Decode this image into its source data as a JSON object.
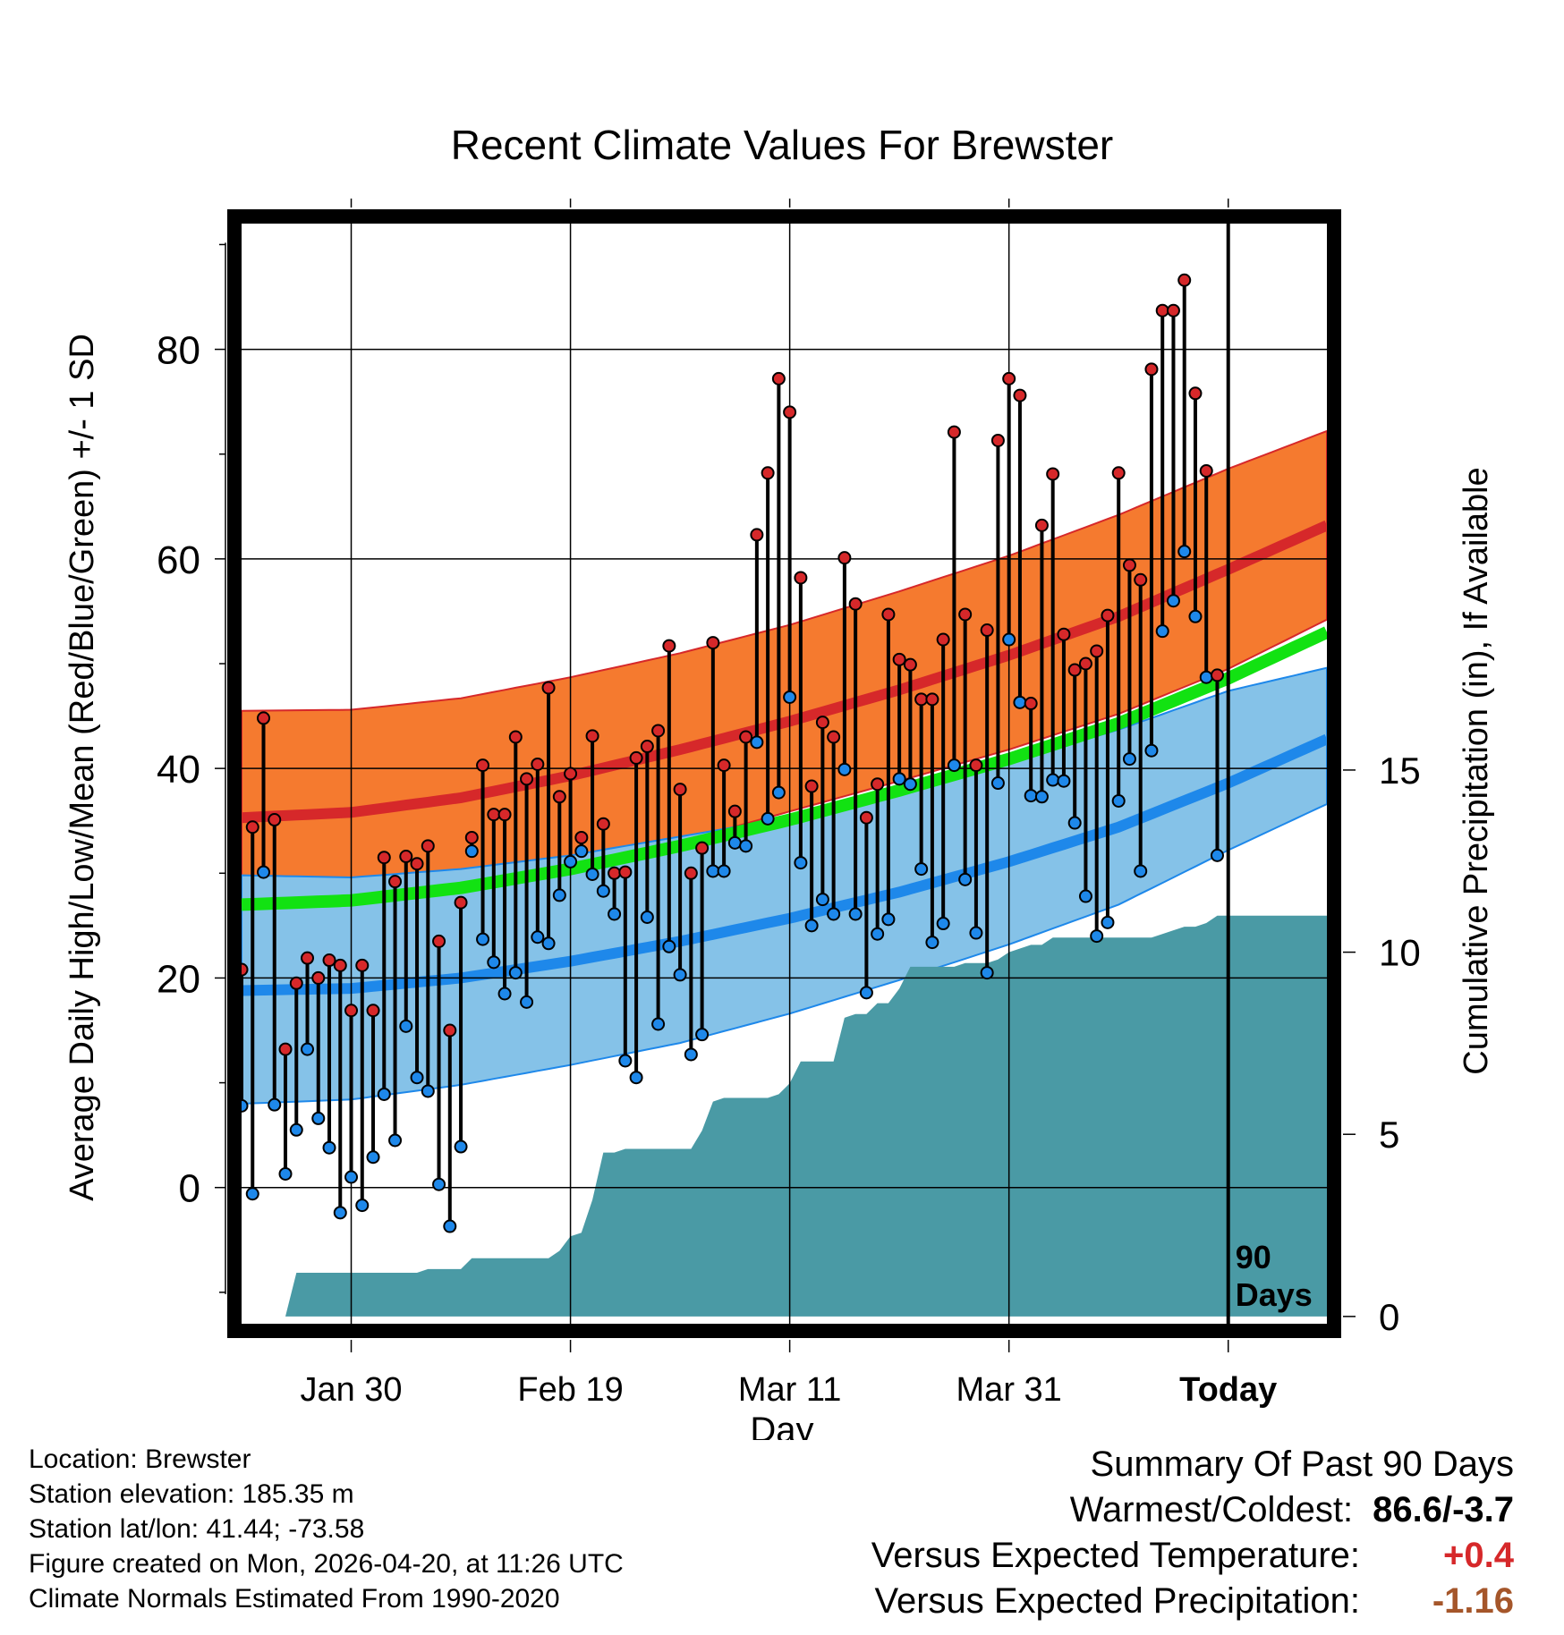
{
  "colors": {
    "high_band": "#f57a2f",
    "high_mean": "#d6282a",
    "low_band": "#85c2e8",
    "low_mean": "#1e88ea",
    "mean": "#12e212",
    "high_marker": "#d6282a",
    "low_marker": "#1e88ea",
    "precip_fill": "#4a9aa5",
    "positive_temp": "#d6282a",
    "negative_precip": "#a5562a"
  },
  "chart_data": {
    "type": "line",
    "title": "Recent Climate Values For Brewster",
    "xlabel": "Day",
    "ylabel": "Average Daily High/Low/Mean (Red/Blue/Green) +/- 1 SD",
    "y2label": "Cumulative Precipitation (in), If Available",
    "xlim": [
      -90,
      9
    ],
    "ylim": [
      -13,
      92
    ],
    "y2lim": [
      -0.2,
      30
    ],
    "y_ticks": [
      0,
      20,
      40,
      60,
      80
    ],
    "y2_ticks": [
      0,
      5,
      10,
      15
    ],
    "x_ticks": [
      {
        "day": -80,
        "label": "Jan 30"
      },
      {
        "day": -60,
        "label": "Feb 19"
      },
      {
        "day": -40,
        "label": "Mar 11"
      },
      {
        "day": -20,
        "label": "Mar 31"
      },
      {
        "day": 0,
        "label": "Today"
      }
    ],
    "today_marker": {
      "day": 0,
      "label_top": "90",
      "label_bottom": "Days"
    },
    "normals": {
      "day": [
        -90,
        -80,
        -70,
        -60,
        -50,
        -40,
        -30,
        -20,
        -10,
        0,
        9
      ],
      "high_mean": [
        35.3,
        35.8,
        37.2,
        39.3,
        41.8,
        44.5,
        47.5,
        50.8,
        54.5,
        59.0,
        63.2
      ],
      "high_sd_upper": [
        45.5,
        45.6,
        46.7,
        48.7,
        51.0,
        53.7,
        56.9,
        60.3,
        64.2,
        68.6,
        72.2
      ],
      "high_sd_lower": [
        26.3,
        26.8,
        28.2,
        30.5,
        33.0,
        35.9,
        38.8,
        41.8,
        45.2,
        49.5,
        54.2
      ],
      "mean": [
        27.0,
        27.4,
        28.6,
        30.4,
        32.6,
        35.1,
        37.9,
        40.9,
        44.3,
        48.6,
        53.0
      ],
      "low_mean": [
        18.8,
        19.0,
        20.0,
        21.6,
        23.5,
        25.7,
        28.2,
        31.1,
        34.4,
        38.6,
        42.8
      ],
      "low_sd_upper": [
        29.8,
        29.6,
        30.4,
        31.7,
        33.5,
        35.3,
        37.8,
        40.6,
        43.7,
        47.4,
        49.6
      ],
      "low_sd_lower": [
        8.0,
        8.4,
        9.8,
        11.7,
        13.8,
        16.6,
        19.8,
        23.2,
        27.0,
        32.2,
        36.6
      ]
    },
    "series": [
      {
        "name": "Daily High",
        "values": [
          20.8,
          34.4,
          44.8,
          35.1,
          13.2,
          19.5,
          21.9,
          20.0,
          21.7,
          21.2,
          16.9,
          21.2,
          16.9,
          31.5,
          29.2,
          31.6,
          30.9,
          32.6,
          23.5,
          15.0,
          27.2,
          33.4,
          40.3,
          35.6,
          35.6,
          43.0,
          39.0,
          40.4,
          47.7,
          37.3,
          39.5,
          33.4,
          43.1,
          34.7,
          30.0,
          30.1,
          41.0,
          42.1,
          43.6,
          51.7,
          38.0,
          30.0,
          32.4,
          52.0,
          40.3,
          35.9,
          43.0,
          62.3,
          68.2,
          77.2,
          74.0,
          58.2,
          38.3,
          44.4,
          43.0,
          60.1,
          55.7,
          35.3,
          38.5,
          54.7,
          50.4,
          49.9,
          46.6,
          46.6,
          52.3,
          72.1,
          54.7,
          40.3,
          53.2,
          71.3,
          77.2,
          75.6,
          46.2,
          63.2,
          68.1,
          52.8,
          49.4,
          50.0,
          51.2,
          54.6,
          68.2,
          59.4,
          58.0,
          78.1,
          83.7,
          83.7,
          86.6,
          75.8,
          68.4,
          48.9
        ]
      },
      {
        "name": "Daily Low",
        "values": [
          7.8,
          -0.6,
          30.1,
          7.9,
          1.3,
          5.5,
          13.2,
          6.6,
          3.8,
          -2.4,
          1.0,
          -1.7,
          2.9,
          8.9,
          4.5,
          15.4,
          10.5,
          9.2,
          0.3,
          -3.7,
          3.9,
          32.1,
          23.7,
          21.5,
          18.5,
          20.5,
          17.7,
          23.9,
          23.3,
          27.9,
          31.1,
          32.1,
          29.9,
          28.3,
          26.1,
          12.1,
          10.5,
          25.8,
          15.6,
          23.0,
          20.3,
          12.7,
          14.6,
          30.2,
          30.2,
          32.9,
          32.6,
          42.5,
          35.2,
          37.7,
          46.8,
          31.0,
          25.0,
          27.5,
          26.1,
          39.9,
          26.1,
          18.6,
          24.2,
          25.6,
          39.0,
          38.5,
          30.4,
          23.4,
          25.2,
          40.3,
          29.4,
          24.3,
          20.5,
          38.6,
          52.3,
          46.3,
          37.4,
          37.3,
          38.9,
          38.8,
          34.8,
          27.8,
          24.0,
          25.3,
          36.9,
          40.9,
          30.2,
          41.7,
          53.1,
          56.0,
          60.7,
          54.5,
          48.7,
          31.7
        ]
      },
      {
        "name": "Cumulative Precipitation",
        "values": [
          0.0,
          0.0,
          0.0,
          0.0,
          0.0,
          1.2,
          1.2,
          1.2,
          1.2,
          1.2,
          1.2,
          1.2,
          1.2,
          1.2,
          1.2,
          1.2,
          1.2,
          1.3,
          1.3,
          1.3,
          1.3,
          1.6,
          1.6,
          1.6,
          1.6,
          1.6,
          1.6,
          1.6,
          1.6,
          1.8,
          2.2,
          2.3,
          3.2,
          4.5,
          4.5,
          4.6,
          4.6,
          4.6,
          4.6,
          4.6,
          4.6,
          4.6,
          5.1,
          5.9,
          6.0,
          6.0,
          6.0,
          6.0,
          6.0,
          6.1,
          6.4,
          7.0,
          7.0,
          7.0,
          7.0,
          8.2,
          8.3,
          8.3,
          8.6,
          8.6,
          9.0,
          9.6,
          9.6,
          9.6,
          9.6,
          9.6,
          9.7,
          9.7,
          9.7,
          9.8,
          10.0,
          10.1,
          10.2,
          10.2,
          10.4,
          10.4,
          10.4,
          10.4,
          10.4,
          10.4,
          10.4,
          10.4,
          10.4,
          10.4,
          10.5,
          10.6,
          10.7,
          10.7,
          10.8,
          11.0,
          11.0,
          11.0,
          11.0,
          11.0,
          11.0,
          11.0,
          11.0,
          11.0,
          11.0,
          11.0
        ]
      }
    ]
  },
  "info": {
    "location": "Location: Brewster",
    "elevation": "Station elevation: 185.35 m",
    "latlon": "Station lat/lon: 41.44; -73.58",
    "created": "Figure created on Mon, 2026-04-20, at 11:26 UTC",
    "normals": "Climate Normals Estimated From 1990-2020"
  },
  "summary": {
    "heading": "Summary Of Past 90 Days",
    "warmest_label": "Warmest/Coldest:",
    "warmest_value": "86.6/-3.7",
    "temp_label": "Versus Expected Temperature:",
    "temp_value": "+0.4",
    "precip_label": "Versus Expected Precipitation:",
    "precip_value": "-1.16"
  }
}
